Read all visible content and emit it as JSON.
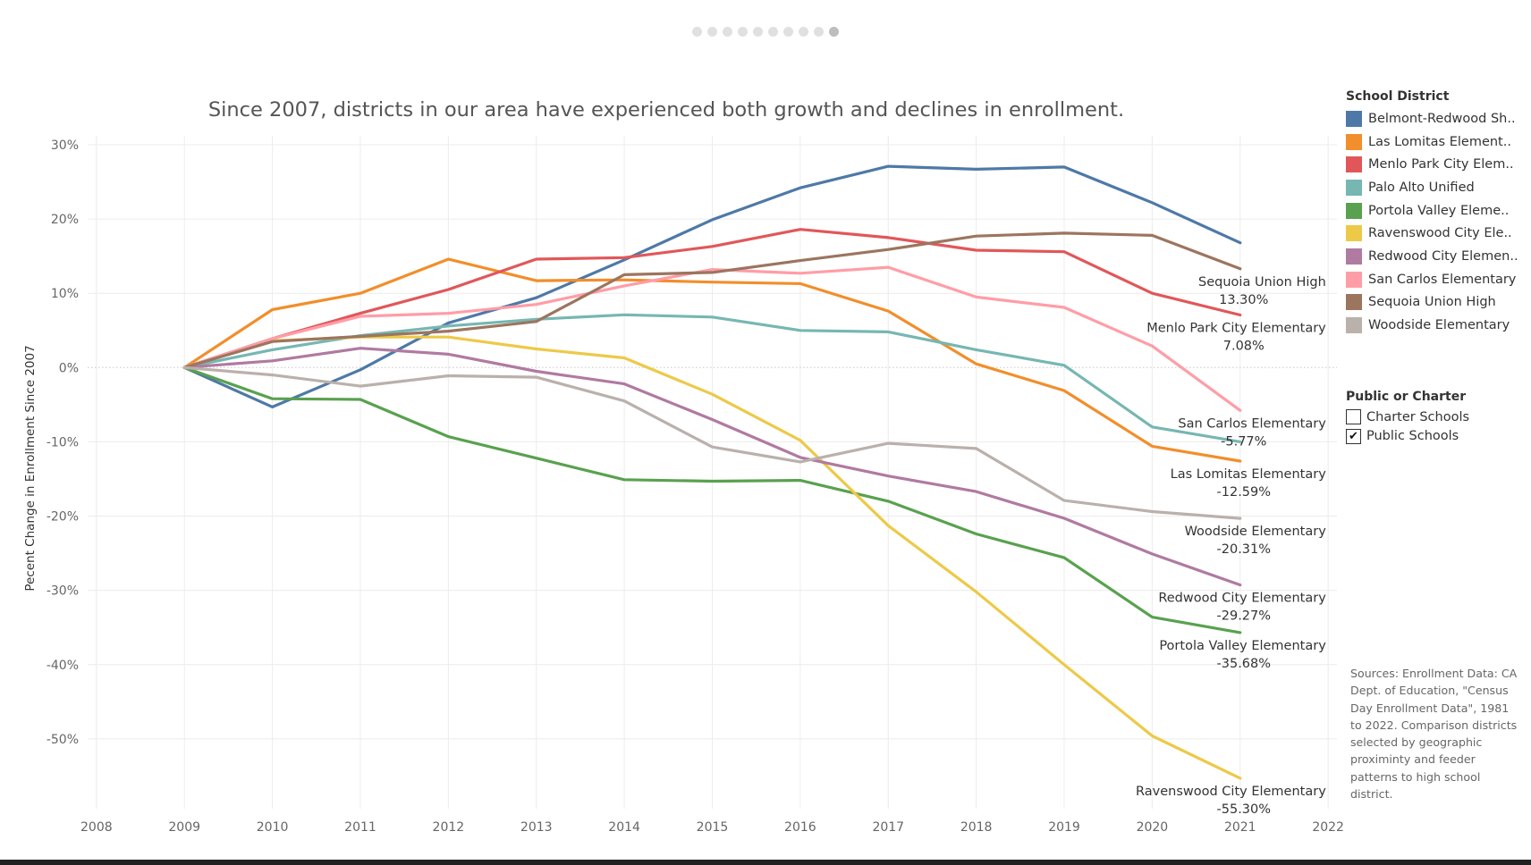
{
  "chart_data": {
    "type": "line",
    "title": "Since 2007, districts in our area have experienced both growth and declines in enrollment.",
    "xlabel": "",
    "ylabel": "Pecent Change in Enrollment Since 2007",
    "x": [
      2009,
      2010,
      2011,
      2012,
      2013,
      2014,
      2015,
      2016,
      2017,
      2018,
      2019,
      2020,
      2021
    ],
    "x_ticks": [
      2008,
      2009,
      2010,
      2011,
      2012,
      2013,
      2014,
      2015,
      2016,
      2017,
      2018,
      2019,
      2020,
      2021,
      2022
    ],
    "xlim": [
      2007.9,
      2022.1
    ],
    "y_ticks": [
      30,
      20,
      10,
      0,
      -10,
      -20,
      -30,
      -40,
      -50
    ],
    "y_tick_labels": [
      "30%",
      "20%",
      "10%",
      "0%",
      "-10%",
      "-20%",
      "-30%",
      "-40%",
      "-50%"
    ],
    "ylim": [
      -59.4,
      31.2
    ],
    "grid": true,
    "legend_position": "right",
    "series": [
      {
        "name": "Belmont-Redwood Shores",
        "legend_label": "Belmont-Redwood Sh..",
        "color": "#4e79a7",
        "values": [
          0,
          -5.3,
          -0.3,
          6.0,
          9.4,
          14.5,
          19.9,
          24.2,
          27.1,
          26.7,
          27.0,
          22.2,
          16.8
        ]
      },
      {
        "name": "Las Lomitas Elementary",
        "legend_label": "Las Lomitas Element..",
        "color": "#f28e2b",
        "values": [
          0,
          7.8,
          10.0,
          14.6,
          11.7,
          11.8,
          11.5,
          11.3,
          7.6,
          0.5,
          -3.1,
          -10.6,
          -12.59
        ],
        "end_label": "Las Lomitas Elementary",
        "end_value_label": "-12.59%"
      },
      {
        "name": "Menlo Park City Elementary",
        "legend_label": "Menlo Park City Elem..",
        "color": "#e15759",
        "values": [
          0,
          3.9,
          7.3,
          10.5,
          14.6,
          14.8,
          16.3,
          18.6,
          17.5,
          15.8,
          15.6,
          10.0,
          7.08
        ],
        "end_label": "Menlo Park City Elementary",
        "end_value_label": "7.08%"
      },
      {
        "name": "Palo Alto Unified",
        "legend_label": "Palo Alto Unified",
        "color": "#76b7b2",
        "values": [
          0,
          2.4,
          4.3,
          5.6,
          6.5,
          7.1,
          6.8,
          5.0,
          4.8,
          2.4,
          0.3,
          -8.0,
          -10.0
        ]
      },
      {
        "name": "Portola Valley Elementary",
        "legend_label": "Portola Valley Eleme..",
        "color": "#59a14f",
        "values": [
          0,
          -4.2,
          -4.3,
          -9.3,
          -12.2,
          -15.1,
          -15.3,
          -15.2,
          -18.0,
          -22.4,
          -25.6,
          -33.6,
          -35.68
        ],
        "end_label": "Portola Valley Elementary",
        "end_value_label": "-35.68%"
      },
      {
        "name": "Ravenswood City Elementary",
        "legend_label": "Ravenswood City Ele..",
        "color": "#edc948",
        "values": [
          0,
          3.6,
          4.1,
          4.1,
          2.5,
          1.3,
          -3.6,
          -9.8,
          -21.3,
          -30.2,
          -40.0,
          -49.6,
          -55.3
        ],
        "end_label": "Ravenswood City Elementary",
        "end_value_label": "-55.30%"
      },
      {
        "name": "Redwood City Elementary",
        "legend_label": "Redwood City Elemen..",
        "color": "#b07aa1",
        "values": [
          0,
          0.9,
          2.6,
          1.8,
          -0.5,
          -2.2,
          -7.0,
          -12.1,
          -14.6,
          -16.7,
          -20.3,
          -25.1,
          -29.27
        ],
        "end_label": "Redwood City Elementary",
        "end_value_label": "-29.27%"
      },
      {
        "name": "San Carlos Elementary",
        "legend_label": "San Carlos Elementary",
        "color": "#ff9da7",
        "values": [
          0,
          3.9,
          6.9,
          7.3,
          8.5,
          11.0,
          13.2,
          12.7,
          13.5,
          9.5,
          8.1,
          2.9,
          -5.77
        ],
        "end_label": "San Carlos Elementary",
        "end_value_label": "-5.77%"
      },
      {
        "name": "Sequoia Union High",
        "legend_label": "Sequoia Union High",
        "color": "#9c755f",
        "values": [
          0,
          3.5,
          4.2,
          4.9,
          6.2,
          12.5,
          12.8,
          14.4,
          15.9,
          17.7,
          18.1,
          17.8,
          13.3
        ],
        "end_label": "Sequoia Union High",
        "end_value_label": "13.30%"
      },
      {
        "name": "Woodside Elementary",
        "legend_label": "Woodside Elementary",
        "color": "#bab0ac",
        "values": [
          0,
          -1.0,
          -2.5,
          -1.1,
          -1.3,
          -4.5,
          -10.7,
          -12.7,
          -10.2,
          -10.9,
          -17.9,
          -19.4,
          -20.31
        ],
        "end_label": "Woodside Elementary",
        "end_value_label": "-20.31%"
      }
    ]
  },
  "legend": {
    "title": "School District",
    "items": [
      {
        "label": "Belmont-Redwood Sh..",
        "color": "#4e79a7"
      },
      {
        "label": "Las Lomitas Element..",
        "color": "#f28e2b"
      },
      {
        "label": "Menlo Park City Elem..",
        "color": "#e15759"
      },
      {
        "label": "Palo Alto Unified",
        "color": "#76b7b2"
      },
      {
        "label": "Portola Valley Eleme..",
        "color": "#59a14f"
      },
      {
        "label": "Ravenswood City Ele..",
        "color": "#edc948"
      },
      {
        "label": "Redwood City Elemen..",
        "color": "#b07aa1"
      },
      {
        "label": "San Carlos Elementary",
        "color": "#ff9da7"
      },
      {
        "label": "Sequoia Union High",
        "color": "#9c755f"
      },
      {
        "label": "Woodside Elementary",
        "color": "#bab0ac"
      }
    ]
  },
  "filter": {
    "title": "Public or Charter",
    "options": [
      {
        "label": "Charter Schools",
        "checked": false
      },
      {
        "label": "Public Schools",
        "checked": true
      }
    ]
  },
  "sources_text": "Sources: Enrollment Data: CA Dept. of Education, \"Census Day Enrollment Data\", 1981 to 2022. Comparison districts selected by geographic proximinty and feeder patterns to high school district.",
  "pagination": {
    "count": 10,
    "active": 10
  }
}
